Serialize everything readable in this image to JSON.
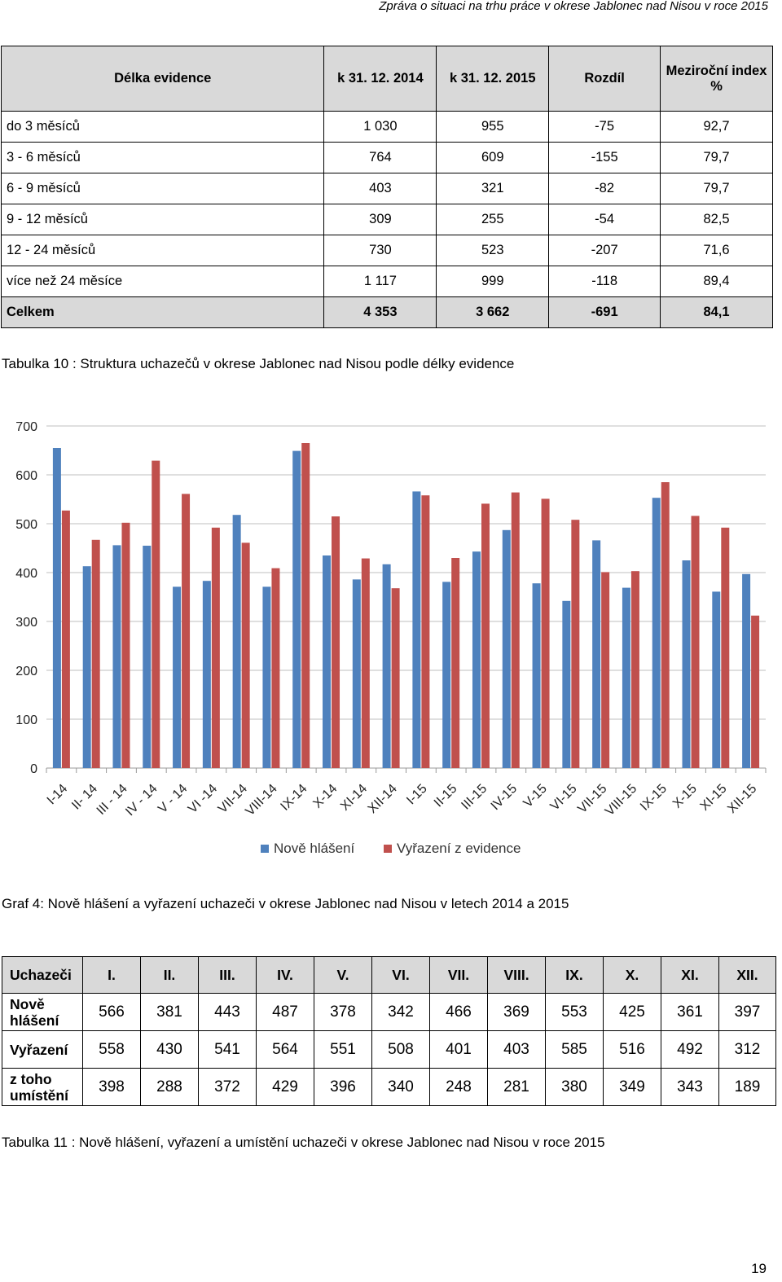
{
  "header": {
    "text": "Zpráva o situaci na trhu práce v okrese Jablonec nad Nisou v roce 2015"
  },
  "table10": {
    "headers": [
      "Délka evidence",
      "k 31. 12. 2014",
      "k 31.  12. 2015",
      "Rozdíl",
      "Meziroční index %"
    ],
    "rows": [
      [
        "do 3 měsíců",
        "1 030",
        "955",
        "-75",
        "92,7"
      ],
      [
        "3 - 6 měsíců",
        "764",
        "609",
        "-155",
        "79,7"
      ],
      [
        "6 - 9 měsíců",
        "403",
        "321",
        "-82",
        "79,7"
      ],
      [
        "9 - 12 měsíců",
        "309",
        "255",
        "-54",
        "82,5"
      ],
      [
        "12 - 24 měsíců",
        "730",
        "523",
        "-207",
        "71,6"
      ],
      [
        "více než 24 měsíce",
        "1 117",
        "999",
        "-118",
        "89,4"
      ]
    ],
    "total": [
      "Celkem",
      "4 353",
      "3 662",
      "-691",
      "84,1"
    ],
    "caption": "Tabulka 10 : Struktura uchazečů v okrese Jablonec nad Nisou podle délky evidence"
  },
  "chart_data": {
    "type": "bar",
    "categories": [
      "I-14",
      "II- 14",
      "III - 14",
      "IV - 14",
      "V - 14",
      "VI -14",
      "VII-14",
      "VIII-14",
      "IX-14",
      "X-14",
      "XI-14",
      "XII-14",
      "I-15",
      "II-15",
      "III-15",
      "IV-15",
      "V-15",
      "VI-15",
      "VII-15",
      "VIII-15",
      "IX-15",
      "X-15",
      "XI-15",
      "XII-15"
    ],
    "series": [
      {
        "name": "Nově hlášení",
        "color": "#4f81bd",
        "values": [
          655,
          413,
          456,
          455,
          371,
          383,
          518,
          371,
          649,
          435,
          386,
          417,
          566,
          381,
          443,
          487,
          378,
          342,
          466,
          369,
          553,
          425,
          361,
          397
        ]
      },
      {
        "name": "Vyřazení z evidence",
        "color": "#c0504d",
        "values": [
          527,
          467,
          502,
          629,
          561,
          492,
          461,
          409,
          665,
          515,
          429,
          368,
          558,
          430,
          541,
          564,
          551,
          508,
          401,
          403,
          585,
          516,
          492,
          312
        ]
      }
    ],
    "yticks": [
      "0",
      "100",
      "200",
      "300",
      "400",
      "500",
      "600",
      "700"
    ],
    "ylim": [
      0,
      700
    ],
    "grid": true,
    "legend_position": "bottom",
    "caption": "Graf 4: Nově hlášení a vyřazení uchazeči v okrese Jablonec nad Nisou v letech 2014 a 2015"
  },
  "table11": {
    "headers": [
      "Uchazeči",
      "I.",
      "II.",
      "III.",
      "IV.",
      "V.",
      "VI.",
      "VII.",
      "VIII.",
      "IX.",
      "X.",
      "XI.",
      "XII."
    ],
    "rows": [
      {
        "label": [
          "Nově",
          "hlášení"
        ],
        "values": [
          "566",
          "381",
          "443",
          "487",
          "378",
          "342",
          "466",
          "369",
          "553",
          "425",
          "361",
          "397"
        ]
      },
      {
        "label": [
          "Vyřazení"
        ],
        "values": [
          "558",
          "430",
          "541",
          "564",
          "551",
          "508",
          "401",
          "403",
          "585",
          "516",
          "492",
          "312"
        ]
      },
      {
        "label": [
          "z toho",
          "umístění"
        ],
        "values": [
          "398",
          "288",
          "372",
          "429",
          "396",
          "340",
          "248",
          "281",
          "380",
          "349",
          "343",
          "189"
        ]
      }
    ],
    "caption": "Tabulka 11 : Nově hlášení, vyřazení a umístění uchazeči v okrese Jablonec nad Nisou v roce 2015"
  },
  "page_number": "19"
}
